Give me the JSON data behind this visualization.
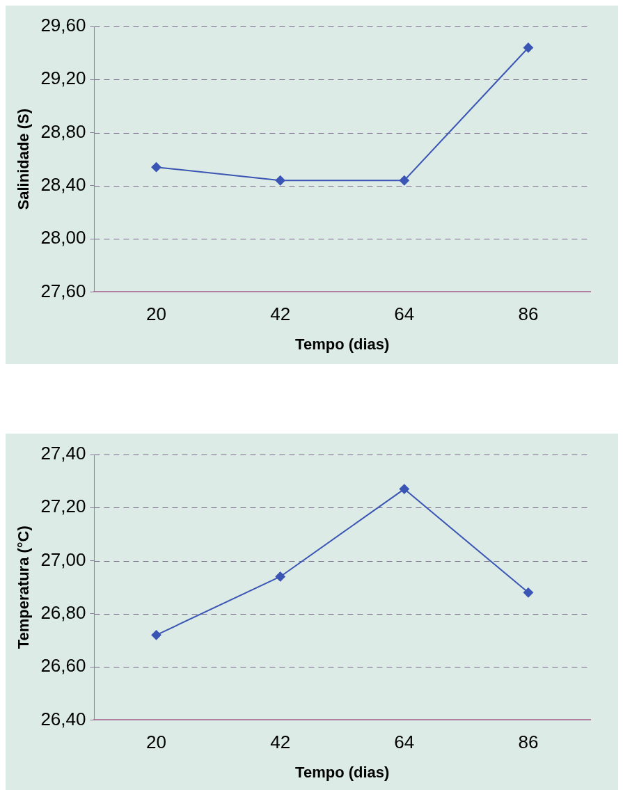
{
  "chart_data": [
    {
      "type": "line",
      "xlabel": "Tempo (dias)",
      "ylabel": "Salinidade (S)",
      "categories": [
        "20",
        "42",
        "64",
        "86"
      ],
      "series": [
        {
          "color": "#3a55b4",
          "values": [
            28.54,
            28.44,
            28.44,
            29.44
          ]
        }
      ],
      "ylim": [
        27.6,
        29.6
      ],
      "yticks": [
        {
          "value": 27.6,
          "label": "27,60"
        },
        {
          "value": 28.0,
          "label": "28,00"
        },
        {
          "value": 28.4,
          "label": "28,40"
        },
        {
          "value": 28.8,
          "label": "28,80"
        },
        {
          "value": 29.2,
          "label": "29,20"
        },
        {
          "value": 29.6,
          "label": "29,60"
        }
      ],
      "grid": "y",
      "legend": false,
      "marker": "diamond",
      "line_style": "solid"
    },
    {
      "type": "line",
      "xlabel": "Tempo (dias)",
      "ylabel": "Temperatura (°C)",
      "categories": [
        "20",
        "42",
        "64",
        "86"
      ],
      "series": [
        {
          "color": "#3a55b4",
          "values": [
            26.72,
            26.94,
            27.27,
            26.88
          ]
        }
      ],
      "ylim": [
        26.4,
        27.4
      ],
      "yticks": [
        {
          "value": 26.4,
          "label": "26,40"
        },
        {
          "value": 26.6,
          "label": "26,60"
        },
        {
          "value": 26.8,
          "label": "26,80"
        },
        {
          "value": 27.0,
          "label": "27,00"
        },
        {
          "value": 27.2,
          "label": "27,20"
        },
        {
          "value": 27.4,
          "label": "27,40"
        }
      ],
      "grid": "y",
      "legend": false,
      "marker": "diamond",
      "line_style": "solid"
    }
  ]
}
